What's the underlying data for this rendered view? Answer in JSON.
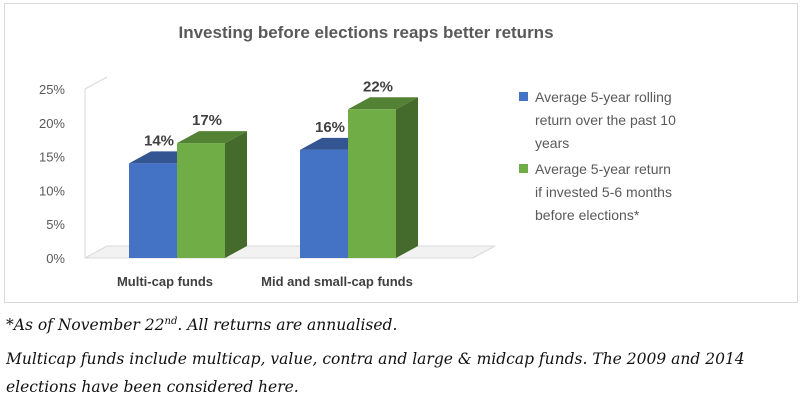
{
  "chart_data": {
    "type": "bar",
    "title": "Investing before elections reaps better returns",
    "categories": [
      "Multi-cap funds",
      "Mid and small-cap funds"
    ],
    "series": [
      {
        "name": "Average 5-year rolling return over the past 10 years",
        "values": [
          14,
          16
        ],
        "color": "#4472c4"
      },
      {
        "name": "Average 5-year return if invested 5-6 months before elections*",
        "values": [
          17,
          22
        ],
        "color": "#70ad47"
      }
    ],
    "data_labels": [
      [
        "14%",
        "16%"
      ],
      [
        "17%",
        "22%"
      ]
    ],
    "yticks": [
      "0%",
      "5%",
      "10%",
      "15%",
      "20%",
      "25%"
    ],
    "ylim": [
      0,
      25
    ],
    "legend_position": "right",
    "legend_lines": [
      [
        "Average 5-year rolling",
        "return over the past 10",
        "years"
      ],
      [
        "Average 5-year return",
        "if invested 5-6 months",
        "before elections*"
      ]
    ],
    "grid": false,
    "three_d": true
  },
  "footnote": {
    "note1_prefix": "*As of November 22",
    "note1_sup": "nd",
    "note1_suffix": ". All returns are annualised.",
    "note2": "Multicap funds include multicap, value, contra and large & midcap funds. The 2009 and 2014 elections have been considered here."
  }
}
